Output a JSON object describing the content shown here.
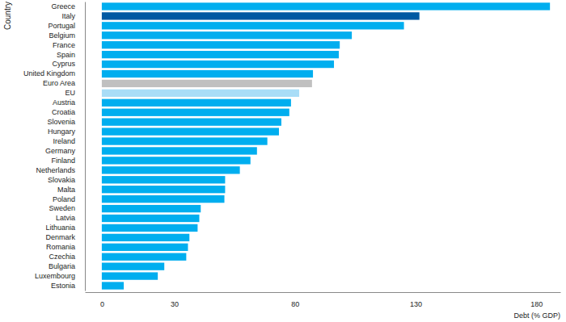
{
  "chart_data": {
    "type": "bar",
    "orientation": "horizontal",
    "xlabel": "Debt (% GDP)",
    "ylabel": "Country",
    "categories": [
      "Greece",
      "Italy",
      "Portugal",
      "Belgium",
      "France",
      "Spain",
      "Cyprus",
      "United Kingdom",
      "Euro Area",
      "EU",
      "Austria",
      "Croatia",
      "Slovenia",
      "Hungary",
      "Ireland",
      "Germany",
      "Finland",
      "Netherlands",
      "Slovakia",
      "Malta",
      "Poland",
      "Sweden",
      "Latvia",
      "Lithuania",
      "Denmark",
      "Romania",
      "Czechia",
      "Bulgaria",
      "Luxembourg",
      "Estonia"
    ],
    "values": [
      185.7,
      131.6,
      125.2,
      103.6,
      98.6,
      98.2,
      96.2,
      87.5,
      87.1,
      81.8,
      78.4,
      77.7,
      74.4,
      73.4,
      68.6,
      64.3,
      61.6,
      57.2,
      51.1,
      51.1,
      50.8,
      41.0,
      40.4,
      39.7,
      36.3,
      35.7,
      35.0,
      25.9,
      23.2,
      9.1
    ],
    "colors": [
      "#00aeef",
      "#0059a3",
      "#00aeef",
      "#00aeef",
      "#00aeef",
      "#00aeef",
      "#00aeef",
      "#00aeef",
      "#c0c0c0",
      "#a9ddf7",
      "#00aeef",
      "#00aeef",
      "#00aeef",
      "#00aeef",
      "#00aeef",
      "#00aeef",
      "#00aeef",
      "#00aeef",
      "#00aeef",
      "#00aeef",
      "#00aeef",
      "#00aeef",
      "#00aeef",
      "#00aeef",
      "#00aeef",
      "#00aeef",
      "#00aeef",
      "#00aeef",
      "#00aeef",
      "#00aeef"
    ],
    "xlim": [
      -7,
      190
    ],
    "xticks": [
      0,
      30,
      80,
      130,
      180
    ],
    "grid": false
  }
}
